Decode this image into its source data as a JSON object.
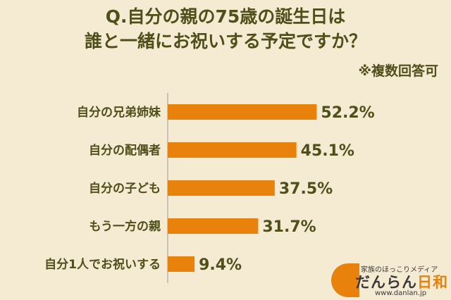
{
  "chart_data": {
    "type": "bar",
    "orientation": "horizontal",
    "title_line1": "Q.自分の親の75歳の誕生日は",
    "title_line2": "誰と一緒にお祝いする予定ですか？",
    "note": "※複数回答可",
    "categories": [
      "自分の兄弟姉妹",
      "自分の配偶者",
      "自分の子ども",
      "もう一方の親",
      "自分1人でお祝いする"
    ],
    "values": [
      52.2,
      45.1,
      37.5,
      31.7,
      9.4
    ],
    "value_labels": [
      "52.2%",
      "45.1%",
      "37.5%",
      "31.7%",
      "9.4%"
    ],
    "xlim": [
      0,
      100
    ],
    "grid": false,
    "bar_color": "#e8820c",
    "text_color": "#4f4f1a"
  },
  "logo": {
    "tagline": "家族のほっこりメディア",
    "name_main": "だんらん",
    "name_accent": "日和",
    "url": "www.danlan.jp"
  }
}
